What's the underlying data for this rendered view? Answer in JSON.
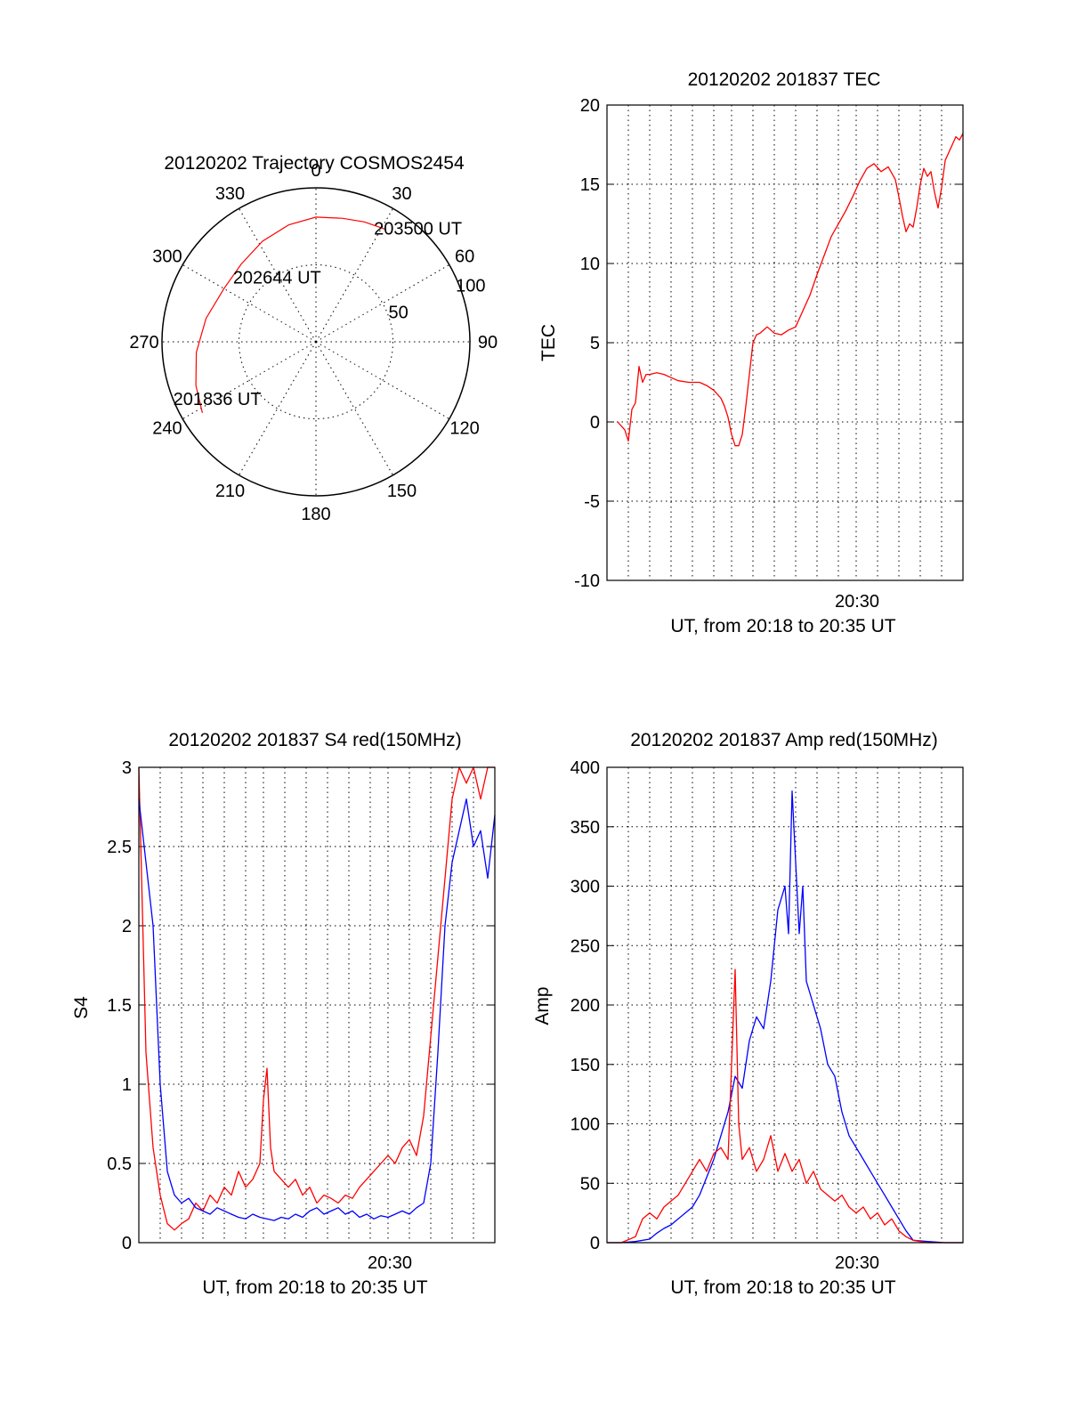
{
  "chart_data": [
    {
      "type": "polar",
      "title": "20120202 Trajectory COSMOS2454",
      "azimuth_labels": [
        "0",
        "30",
        "60",
        "90",
        "120",
        "150",
        "180",
        "210",
        "240",
        "270",
        "300",
        "330"
      ],
      "zenith_rings": [
        50,
        100
      ],
      "zenith_ring_labels": [
        "50",
        "100"
      ],
      "trajectory": {
        "color": "#ff0000",
        "points": [
          {
            "az": 238,
            "zen": 87
          },
          {
            "az": 250,
            "zen": 83
          },
          {
            "az": 265,
            "zen": 78
          },
          {
            "az": 282,
            "zen": 73
          },
          {
            "az": 300,
            "zen": 69
          },
          {
            "az": 316,
            "zen": 70
          },
          {
            "az": 332,
            "zen": 74
          },
          {
            "az": 347,
            "zen": 78
          },
          {
            "az": 0,
            "zen": 81
          },
          {
            "az": 12,
            "zen": 82
          },
          {
            "az": 22,
            "zen": 84
          },
          {
            "az": 32,
            "zen": 86
          }
        ]
      },
      "annotations": [
        {
          "text": "201836 UT",
          "az": 240,
          "zen": 74
        },
        {
          "text": "202644 UT",
          "az": 329,
          "zen": 49
        },
        {
          "text": "203500 UT",
          "az": 42,
          "zen": 99
        }
      ]
    },
    {
      "type": "line",
      "title": "20120202 201837 TEC",
      "ylabel": "TEC",
      "xlabel": "UT, from 20:18 to 20:35 UT",
      "ylim": [
        -10,
        20
      ],
      "y_ticks": [
        "-10",
        "-5",
        "0",
        "5",
        "10",
        "15",
        "20"
      ],
      "x_tick_label": "20:30",
      "series": [
        {
          "color": "#ff0000",
          "x": [
            0.03,
            0.05,
            0.06,
            0.07,
            0.08,
            0.09,
            0.1,
            0.11,
            0.12,
            0.14,
            0.16,
            0.18,
            0.2,
            0.23,
            0.26,
            0.28,
            0.3,
            0.32,
            0.33,
            0.34,
            0.35,
            0.36,
            0.37,
            0.38,
            0.39,
            0.4,
            0.41,
            0.42,
            0.43,
            0.44,
            0.45,
            0.47,
            0.49,
            0.51,
            0.53,
            0.55,
            0.57,
            0.59,
            0.61,
            0.63,
            0.65,
            0.67,
            0.69,
            0.71,
            0.73,
            0.75,
            0.77,
            0.79,
            0.81,
            0.82,
            0.83,
            0.84,
            0.85,
            0.86,
            0.87,
            0.88,
            0.89,
            0.9,
            0.91,
            0.92,
            0.93,
            0.94,
            0.95,
            0.96,
            0.97,
            0.98,
            0.99,
            1.0
          ],
          "y": [
            0,
            -0.5,
            -1.2,
            0.8,
            1.2,
            3.5,
            2.5,
            3.0,
            3.0,
            3.1,
            3.0,
            2.8,
            2.6,
            2.5,
            2.5,
            2.3,
            2.0,
            1.5,
            1.0,
            0.3,
            -0.8,
            -1.5,
            -1.5,
            -0.8,
            1.0,
            3.0,
            5.0,
            5.5,
            5.6,
            5.8,
            6.0,
            5.6,
            5.5,
            5.8,
            6.0,
            7.0,
            8.0,
            9.3,
            10.5,
            11.7,
            12.5,
            13.3,
            14.2,
            15.2,
            16.0,
            16.3,
            15.8,
            16.1,
            15.3,
            14.2,
            13.0,
            12.0,
            12.5,
            12.3,
            13.5,
            15.0,
            16.0,
            15.5,
            15.8,
            14.5,
            13.5,
            14.8,
            16.5,
            17.0,
            17.5,
            18.0,
            17.8,
            18.2
          ]
        }
      ]
    },
    {
      "type": "line",
      "title": "20120202 201837 S4 red(150MHz)",
      "ylabel": "S4",
      "xlabel": "UT, from 20:18 to 20:35 UT",
      "ylim": [
        0,
        3
      ],
      "y_ticks": [
        "0",
        "0.5",
        "1",
        "1.5",
        "2",
        "2.5",
        "3"
      ],
      "x_tick_label": "20:30",
      "series": [
        {
          "color": "#ff0000",
          "x": [
            0.0,
            0.02,
            0.04,
            0.06,
            0.08,
            0.1,
            0.12,
            0.14,
            0.16,
            0.18,
            0.2,
            0.22,
            0.24,
            0.26,
            0.28,
            0.3,
            0.32,
            0.34,
            0.35,
            0.36,
            0.37,
            0.38,
            0.4,
            0.42,
            0.44,
            0.46,
            0.48,
            0.5,
            0.52,
            0.54,
            0.56,
            0.58,
            0.6,
            0.62,
            0.64,
            0.66,
            0.68,
            0.7,
            0.72,
            0.74,
            0.76,
            0.78,
            0.8,
            0.82,
            0.84,
            0.86,
            0.88,
            0.9,
            0.92,
            0.94,
            0.96,
            0.98,
            1.0
          ],
          "y": [
            3,
            1.2,
            0.6,
            0.3,
            0.12,
            0.08,
            0.12,
            0.15,
            0.25,
            0.2,
            0.3,
            0.25,
            0.35,
            0.3,
            0.45,
            0.35,
            0.4,
            0.5,
            0.9,
            1.1,
            0.6,
            0.45,
            0.4,
            0.35,
            0.4,
            0.3,
            0.35,
            0.25,
            0.3,
            0.28,
            0.25,
            0.3,
            0.28,
            0.35,
            0.4,
            0.45,
            0.5,
            0.55,
            0.5,
            0.6,
            0.65,
            0.55,
            0.8,
            1.3,
            1.8,
            2.3,
            2.8,
            3,
            2.9,
            3,
            2.8,
            3,
            3
          ]
        },
        {
          "color": "#0000ff",
          "x": [
            0.0,
            0.02,
            0.04,
            0.06,
            0.08,
            0.1,
            0.12,
            0.14,
            0.16,
            0.18,
            0.2,
            0.22,
            0.24,
            0.26,
            0.28,
            0.3,
            0.32,
            0.34,
            0.36,
            0.38,
            0.4,
            0.42,
            0.44,
            0.46,
            0.48,
            0.5,
            0.52,
            0.54,
            0.56,
            0.58,
            0.6,
            0.62,
            0.64,
            0.66,
            0.68,
            0.7,
            0.72,
            0.74,
            0.76,
            0.78,
            0.8,
            0.82,
            0.84,
            0.86,
            0.88,
            0.9,
            0.92,
            0.94,
            0.96,
            0.98,
            1.0
          ],
          "y": [
            2.8,
            2.4,
            2.0,
            1.0,
            0.45,
            0.3,
            0.25,
            0.28,
            0.22,
            0.2,
            0.18,
            0.22,
            0.2,
            0.18,
            0.16,
            0.15,
            0.18,
            0.16,
            0.15,
            0.14,
            0.16,
            0.15,
            0.18,
            0.16,
            0.2,
            0.22,
            0.18,
            0.2,
            0.22,
            0.18,
            0.2,
            0.16,
            0.18,
            0.15,
            0.17,
            0.16,
            0.18,
            0.2,
            0.18,
            0.22,
            0.25,
            0.5,
            1.2,
            2.0,
            2.4,
            2.6,
            2.8,
            2.5,
            2.6,
            2.3,
            2.7
          ]
        }
      ]
    },
    {
      "type": "line",
      "title": "20120202 201837 Amp red(150MHz)",
      "ylabel": "Amp",
      "xlabel": "UT, from 20:18 to 20:35 UT",
      "ylim": [
        0,
        400
      ],
      "y_ticks": [
        "0",
        "50",
        "100",
        "150",
        "200",
        "250",
        "300",
        "350",
        "400"
      ],
      "x_tick_label": "20:30",
      "series": [
        {
          "color": "#0000ff",
          "x": [
            0.0,
            0.04,
            0.08,
            0.12,
            0.14,
            0.16,
            0.18,
            0.2,
            0.22,
            0.24,
            0.26,
            0.28,
            0.3,
            0.32,
            0.34,
            0.36,
            0.38,
            0.4,
            0.42,
            0.44,
            0.46,
            0.48,
            0.5,
            0.51,
            0.52,
            0.53,
            0.54,
            0.55,
            0.56,
            0.58,
            0.6,
            0.62,
            0.64,
            0.66,
            0.68,
            0.7,
            0.72,
            0.74,
            0.76,
            0.78,
            0.8,
            0.82,
            0.84,
            0.86,
            0.9,
            0.95,
            1.0
          ],
          "y": [
            0,
            0,
            1,
            3,
            8,
            12,
            15,
            20,
            25,
            30,
            40,
            55,
            70,
            90,
            110,
            140,
            130,
            170,
            190,
            180,
            220,
            280,
            300,
            260,
            380,
            320,
            260,
            300,
            220,
            200,
            180,
            150,
            140,
            110,
            90,
            80,
            70,
            60,
            50,
            40,
            30,
            20,
            10,
            2,
            1,
            0,
            0
          ]
        },
        {
          "color": "#ff0000",
          "x": [
            0.0,
            0.04,
            0.08,
            0.1,
            0.12,
            0.14,
            0.16,
            0.18,
            0.2,
            0.22,
            0.24,
            0.26,
            0.28,
            0.3,
            0.32,
            0.34,
            0.36,
            0.37,
            0.38,
            0.4,
            0.42,
            0.44,
            0.46,
            0.48,
            0.5,
            0.52,
            0.54,
            0.56,
            0.58,
            0.6,
            0.62,
            0.64,
            0.66,
            0.68,
            0.7,
            0.72,
            0.74,
            0.76,
            0.78,
            0.8,
            0.82,
            0.84,
            0.86,
            0.9,
            0.95,
            1.0
          ],
          "y": [
            0,
            0,
            5,
            20,
            25,
            20,
            30,
            35,
            40,
            50,
            60,
            70,
            60,
            75,
            80,
            70,
            230,
            100,
            70,
            80,
            60,
            70,
            90,
            60,
            75,
            60,
            70,
            50,
            60,
            45,
            40,
            35,
            40,
            30,
            25,
            30,
            20,
            25,
            15,
            20,
            10,
            5,
            2,
            0,
            0,
            0
          ]
        }
      ]
    }
  ]
}
